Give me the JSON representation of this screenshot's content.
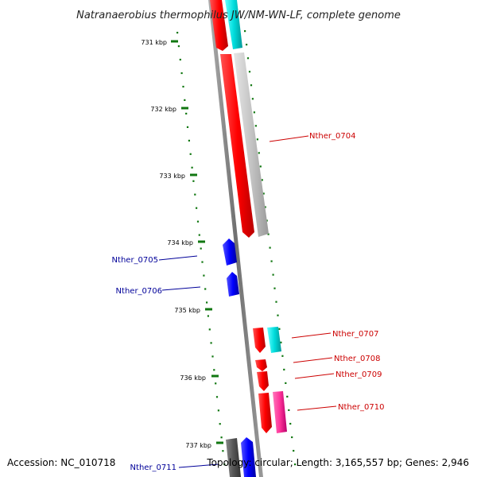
{
  "title": "Natranaerobius thermophilus JW/NM-WN-LF, complete genome",
  "accession": "Accession: NC_010718",
  "summary": "Topology: circular; Length: 3,165,557 bp; Genes: 2,946",
  "ticks": [
    {
      "label": "731 kbp"
    },
    {
      "label": "732 kbp"
    },
    {
      "label": "733 kbp"
    },
    {
      "label": "734 kbp"
    },
    {
      "label": "735 kbp"
    },
    {
      "label": "736 kbp"
    },
    {
      "label": "737 kbp"
    }
  ],
  "genes": [
    {
      "name": "Nther_0704",
      "color": "#cc0000"
    },
    {
      "name": "Nther_0705",
      "color": "#000099"
    },
    {
      "name": "Nther_0706",
      "color": "#000099"
    },
    {
      "name": "Nther_0707",
      "color": "#cc0000"
    },
    {
      "name": "Nther_0708",
      "color": "#cc0000"
    },
    {
      "name": "Nther_0709",
      "color": "#cc0000"
    },
    {
      "name": "Nther_0710",
      "color": "#cc0000"
    },
    {
      "name": "Nther_0711",
      "color": "#000099"
    }
  ],
  "colors": {
    "tick": "#117711",
    "backbone": "#7a7a7a",
    "red": "#ff0000",
    "blue": "#0000ff",
    "cyan": "#00cccc",
    "grey": "#c0c0c0",
    "magenta": "#ff3399",
    "darkgrey": "#555555"
  }
}
